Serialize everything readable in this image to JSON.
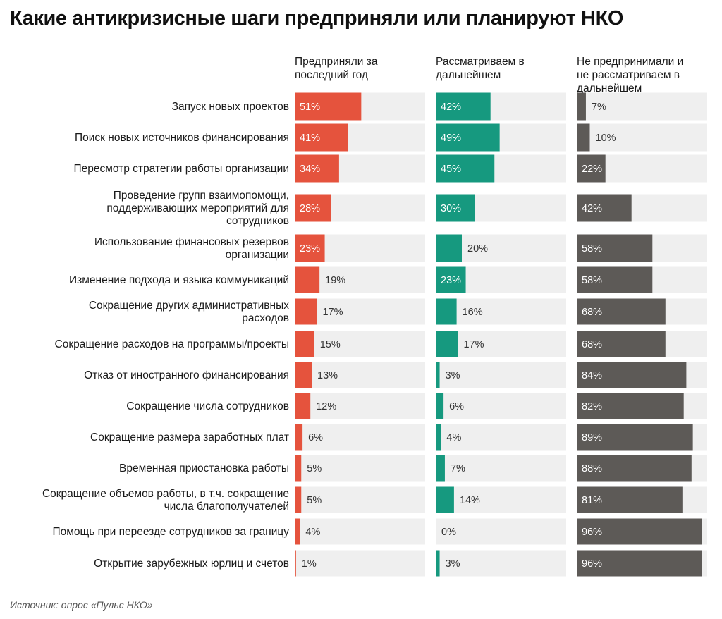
{
  "title": "Какие антикризисные шаги предприняли или планируют НКО",
  "source": "Источник: опрос «Пульс НКО»",
  "colors": {
    "taken": "#e5533d",
    "considering": "#16997f",
    "not_considering": "#5d5a57",
    "track": "#efefef"
  },
  "chart_data": {
    "type": "bar",
    "orientation": "horizontal",
    "layout": "small-multiples",
    "unit": "%",
    "xlim": [
      0,
      100
    ],
    "grid": false,
    "categories": [
      "Запуск новых проектов",
      "Поиск новых источников финансирования",
      "Пересмотр стратегии работы организации",
      "Проведение групп взаимопомощи, поддерживающих мероприятий для сотрудников",
      "Использование финансовых резервов организации",
      "Изменение подхода и языка коммуникаций",
      "Сокращение других административных расходов",
      "Сокращение расходов на программы/проекты",
      "Отказ от иностранного финансирования",
      "Сокращение числа сотрудников",
      "Сокращение размера заработных плат",
      "Временная приостановка работы",
      "Сокращение объемов работы, в т.ч. сокращение числа благополучателей",
      "Помощь при переезде сотрудников за границу",
      "Открытие зарубежных юрлиц и счетов"
    ],
    "category_lines": [
      [
        "Запуск новых проектов"
      ],
      [
        "Поиск новых источников финансирования"
      ],
      [
        "Пересмотр стратегии работы организации"
      ],
      [
        "Проведение групп взаимопомощи,",
        "поддерживающих мероприятий для",
        "сотрудников"
      ],
      [
        "Использование финансовых резервов",
        "организации"
      ],
      [
        "Изменение подхода и языка коммуникаций"
      ],
      [
        "Сокращение других административных",
        "расходов"
      ],
      [
        "Сокращение расходов на программы/проекты"
      ],
      [
        "Отказ от иностранного финансирования"
      ],
      [
        "Сокращение числа сотрудников"
      ],
      [
        "Сокращение размера заработных плат"
      ],
      [
        "Временная приостановка работы"
      ],
      [
        "Сокращение объемов работы, в т.ч. сокращение",
        "числа благополучателей"
      ],
      [
        "Помощь при переезде сотрудников за границу"
      ],
      [
        "Открытие зарубежных юрлиц и счетов"
      ]
    ],
    "series": [
      {
        "key": "taken",
        "name": "Предприняли за последний год",
        "name_lines": [
          "Предприняли за",
          "последний год"
        ],
        "values": [
          51,
          41,
          34,
          28,
          23,
          19,
          17,
          15,
          13,
          12,
          6,
          5,
          5,
          4,
          1
        ]
      },
      {
        "key": "considering",
        "name": "Рассматриваем в дальнейшем",
        "name_lines": [
          "Рассматриваем в",
          "дальнейшем"
        ],
        "values": [
          42,
          49,
          45,
          30,
          20,
          23,
          16,
          17,
          3,
          6,
          4,
          7,
          14,
          0,
          3
        ]
      },
      {
        "key": "not_considering",
        "name": "Не предпринимали и не рассматриваем в дальнейшем",
        "name_lines": [
          "Не предпринимали и",
          "не рассматриваем в",
          "дальнейшем"
        ],
        "values": [
          7,
          10,
          22,
          42,
          58,
          58,
          68,
          68,
          84,
          82,
          89,
          88,
          81,
          96,
          96
        ]
      }
    ]
  }
}
